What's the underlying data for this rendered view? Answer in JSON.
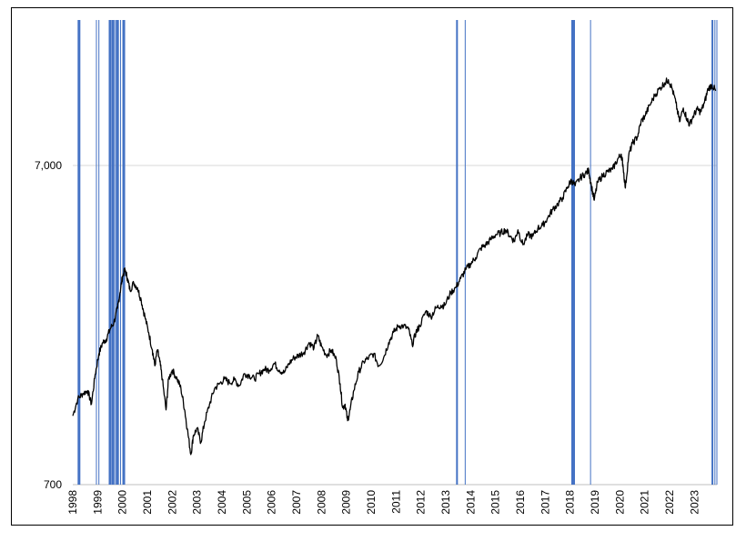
{
  "chart_data": {
    "type": "line",
    "title": "",
    "xlabel": "",
    "ylabel": "",
    "y_scale": "log",
    "ylim": [
      700,
      20000
    ],
    "xlim": [
      1998.0,
      2023.9
    ],
    "grid": "horizontal at 7,000",
    "legend": "none",
    "y_ticks": [
      {
        "value": 700,
        "label": "700"
      },
      {
        "value": 7000,
        "label": "7,000"
      }
    ],
    "x_ticks": [
      "1998",
      "1999",
      "2000",
      "2001",
      "2002",
      "2003",
      "2004",
      "2005",
      "2006",
      "2007",
      "2008",
      "2009",
      "2010",
      "2011",
      "2012",
      "2013",
      "2014",
      "2015",
      "2016",
      "2017",
      "2018",
      "2019",
      "2020",
      "2021",
      "2022",
      "2023"
    ],
    "series": [
      {
        "color": "#000000",
        "points": [
          [
            1998.0,
            1150
          ],
          [
            1998.2,
            1300
          ],
          [
            1998.4,
            1350
          ],
          [
            1998.6,
            1380
          ],
          [
            1998.75,
            1250
          ],
          [
            1998.9,
            1550
          ],
          [
            1999.05,
            1800
          ],
          [
            1999.2,
            1950
          ],
          [
            1999.35,
            2000
          ],
          [
            1999.5,
            2150
          ],
          [
            1999.65,
            2250
          ],
          [
            1999.8,
            2500
          ],
          [
            1999.9,
            2800
          ],
          [
            2000.0,
            3150
          ],
          [
            2000.1,
            3300
          ],
          [
            2000.2,
            3100
          ],
          [
            2000.3,
            2850
          ],
          [
            2000.45,
            3000
          ],
          [
            2000.6,
            2900
          ],
          [
            2000.75,
            2650
          ],
          [
            2000.9,
            2350
          ],
          [
            2001.05,
            2100
          ],
          [
            2001.2,
            1850
          ],
          [
            2001.3,
            1650
          ],
          [
            2001.4,
            1850
          ],
          [
            2001.5,
            1700
          ],
          [
            2001.6,
            1500
          ],
          [
            2001.75,
            1200
          ],
          [
            2001.85,
            1500
          ],
          [
            2002.0,
            1600
          ],
          [
            2002.2,
            1500
          ],
          [
            2002.35,
            1400
          ],
          [
            2002.5,
            1200
          ],
          [
            2002.6,
            1050
          ],
          [
            2002.75,
            870
          ],
          [
            2002.85,
            1000
          ],
          [
            2003.0,
            1050
          ],
          [
            2003.15,
            950
          ],
          [
            2003.3,
            1100
          ],
          [
            2003.5,
            1250
          ],
          [
            2003.7,
            1400
          ],
          [
            2003.9,
            1450
          ],
          [
            2004.1,
            1500
          ],
          [
            2004.3,
            1460
          ],
          [
            2004.5,
            1490
          ],
          [
            2004.7,
            1430
          ],
          [
            2004.9,
            1560
          ],
          [
            2005.1,
            1540
          ],
          [
            2005.3,
            1500
          ],
          [
            2005.5,
            1560
          ],
          [
            2005.7,
            1610
          ],
          [
            2005.9,
            1600
          ],
          [
            2006.1,
            1680
          ],
          [
            2006.3,
            1600
          ],
          [
            2006.5,
            1570
          ],
          [
            2006.7,
            1680
          ],
          [
            2006.9,
            1750
          ],
          [
            2007.1,
            1780
          ],
          [
            2007.3,
            1820
          ],
          [
            2007.5,
            1950
          ],
          [
            2007.7,
            1880
          ],
          [
            2007.85,
            2050
          ],
          [
            2008.0,
            1900
          ],
          [
            2008.2,
            1780
          ],
          [
            2008.4,
            1850
          ],
          [
            2008.6,
            1720
          ],
          [
            2008.75,
            1450
          ],
          [
            2008.85,
            1220
          ],
          [
            2008.95,
            1250
          ],
          [
            2009.05,
            1110
          ],
          [
            2009.15,
            1200
          ],
          [
            2009.3,
            1380
          ],
          [
            2009.5,
            1580
          ],
          [
            2009.7,
            1700
          ],
          [
            2009.9,
            1750
          ],
          [
            2010.1,
            1800
          ],
          [
            2010.3,
            1650
          ],
          [
            2010.5,
            1750
          ],
          [
            2010.7,
            1950
          ],
          [
            2010.9,
            2100
          ],
          [
            2011.1,
            2200
          ],
          [
            2011.3,
            2200
          ],
          [
            2011.5,
            2150
          ],
          [
            2011.65,
            1920
          ],
          [
            2011.8,
            2100
          ],
          [
            2011.95,
            2200
          ],
          [
            2012.2,
            2450
          ],
          [
            2012.4,
            2350
          ],
          [
            2012.6,
            2500
          ],
          [
            2012.8,
            2550
          ],
          [
            2012.95,
            2550
          ],
          [
            2013.2,
            2800
          ],
          [
            2013.4,
            2900
          ],
          [
            2013.6,
            3100
          ],
          [
            2013.8,
            3300
          ],
          [
            2014.0,
            3450
          ],
          [
            2014.2,
            3600
          ],
          [
            2014.4,
            3850
          ],
          [
            2014.6,
            3950
          ],
          [
            2014.8,
            4100
          ],
          [
            2015.0,
            4250
          ],
          [
            2015.2,
            4300
          ],
          [
            2015.4,
            4400
          ],
          [
            2015.6,
            4200
          ],
          [
            2015.75,
            4050
          ],
          [
            2015.9,
            4400
          ],
          [
            2016.1,
            3950
          ],
          [
            2016.3,
            4250
          ],
          [
            2016.5,
            4200
          ],
          [
            2016.7,
            4450
          ],
          [
            2016.9,
            4550
          ],
          [
            2017.1,
            4800
          ],
          [
            2017.3,
            5100
          ],
          [
            2017.5,
            5300
          ],
          [
            2017.7,
            5550
          ],
          [
            2017.9,
            6000
          ],
          [
            2018.05,
            6300
          ],
          [
            2018.2,
            6050
          ],
          [
            2018.4,
            6400
          ],
          [
            2018.6,
            6600
          ],
          [
            2018.75,
            6750
          ],
          [
            2018.85,
            6050
          ],
          [
            2018.97,
            5450
          ],
          [
            2019.1,
            6200
          ],
          [
            2019.3,
            6500
          ],
          [
            2019.5,
            6700
          ],
          [
            2019.7,
            6800
          ],
          [
            2019.9,
            7300
          ],
          [
            2020.05,
            7600
          ],
          [
            2020.12,
            7050
          ],
          [
            2020.22,
            5950
          ],
          [
            2020.35,
            7500
          ],
          [
            2020.5,
            8200
          ],
          [
            2020.7,
            8600
          ],
          [
            2020.85,
            9600
          ],
          [
            2021.0,
            10000
          ],
          [
            2021.2,
            10800
          ],
          [
            2021.4,
            11600
          ],
          [
            2021.6,
            12200
          ],
          [
            2021.8,
            12700
          ],
          [
            2021.95,
            13000
          ],
          [
            2022.1,
            12200
          ],
          [
            2022.25,
            11000
          ],
          [
            2022.4,
            9600
          ],
          [
            2022.55,
            10600
          ],
          [
            2022.7,
            9800
          ],
          [
            2022.8,
            9400
          ],
          [
            2022.95,
            10000
          ],
          [
            2023.1,
            10500
          ],
          [
            2023.25,
            10300
          ],
          [
            2023.4,
            11000
          ],
          [
            2023.55,
            12200
          ],
          [
            2023.7,
            12500
          ],
          [
            2023.85,
            12000
          ]
        ]
      }
    ],
    "vertical_markers": [
      {
        "x": 1998.25,
        "color": "#4472C4",
        "width": 3
      },
      {
        "x": 1998.95,
        "color": "#4472C4",
        "width": 1
      },
      {
        "x": 1999.05,
        "color": "#4472C4",
        "width": 1
      },
      {
        "x": 1999.5,
        "color": "#4472C4",
        "width": 3
      },
      {
        "x": 1999.62,
        "color": "#4472C4",
        "width": 3
      },
      {
        "x": 1999.72,
        "color": "#4472C4",
        "width": 1
      },
      {
        "x": 1999.8,
        "color": "#4472C4",
        "width": 3
      },
      {
        "x": 1999.92,
        "color": "#4472C4",
        "width": 1
      },
      {
        "x": 2000.05,
        "color": "#4472C4",
        "width": 3
      },
      {
        "x": 2013.45,
        "color": "#4472C4",
        "width": 2
      },
      {
        "x": 2013.78,
        "color": "#4472C4",
        "width": 1
      },
      {
        "x": 2018.12,
        "color": "#4472C4",
        "width": 4
      },
      {
        "x": 2018.82,
        "color": "#4472C4",
        "width": 1
      },
      {
        "x": 2023.72,
        "color": "#4472C4",
        "width": 2
      },
      {
        "x": 2023.82,
        "color": "#4472C4",
        "width": 1
      },
      {
        "x": 2023.9,
        "color": "#4472C4",
        "width": 1
      }
    ]
  }
}
